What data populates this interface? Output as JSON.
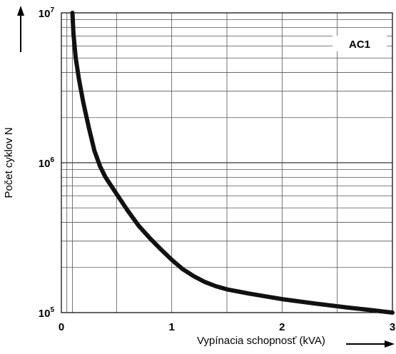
{
  "chart_data": {
    "type": "line",
    "title": "",
    "xlabel": "Vypínacia schopnosť (kVA)",
    "ylabel": "Počet cyklov N",
    "xlim": [
      0,
      3
    ],
    "ylim": [
      100000,
      10000000
    ],
    "y_scale": "log",
    "grid": true,
    "x_ticks": [
      {
        "value": 0,
        "label": "0"
      },
      {
        "value": 1,
        "label": "1"
      },
      {
        "value": 2,
        "label": "2"
      },
      {
        "value": 3,
        "label": "3"
      }
    ],
    "y_ticks": [
      {
        "value": 100000,
        "base": "10",
        "exp": "5"
      },
      {
        "value": 1000000,
        "base": "10",
        "exp": "6"
      },
      {
        "value": 10000000,
        "base": "10",
        "exp": "7"
      }
    ],
    "legend": {
      "label": "AC1",
      "placement": "top-right"
    },
    "series": [
      {
        "name": "AC1",
        "color": "#111111",
        "points": [
          [
            0.1,
            10000000
          ],
          [
            0.11,
            7200000
          ],
          [
            0.13,
            5000000
          ],
          [
            0.16,
            3600000
          ],
          [
            0.2,
            2500000
          ],
          [
            0.25,
            1700000
          ],
          [
            0.3,
            1200000
          ],
          [
            0.35,
            950000
          ],
          [
            0.4,
            800000
          ],
          [
            0.5,
            620000
          ],
          [
            0.6,
            480000
          ],
          [
            0.7,
            380000
          ],
          [
            0.8,
            315000
          ],
          [
            0.9,
            265000
          ],
          [
            1.0,
            225000
          ],
          [
            1.1,
            195000
          ],
          [
            1.2,
            175000
          ],
          [
            1.3,
            160000
          ],
          [
            1.4,
            150000
          ],
          [
            1.5,
            143000
          ],
          [
            1.7,
            134000
          ],
          [
            2.0,
            123000
          ],
          [
            2.3,
            115000
          ],
          [
            2.6,
            108000
          ],
          [
            2.8,
            104000
          ],
          [
            3.0,
            100000
          ]
        ]
      }
    ]
  }
}
